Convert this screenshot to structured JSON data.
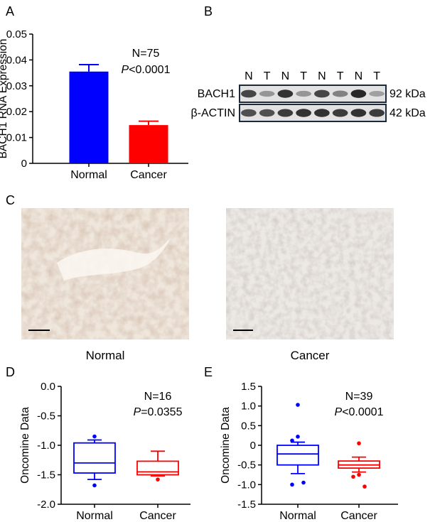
{
  "panels": {
    "a": "A",
    "b": "B",
    "c": "C",
    "d": "D",
    "e": "E"
  },
  "colors": {
    "normal": "#0000ff",
    "cancer": "#ff0000",
    "axis": "#000000"
  },
  "chart_data": [
    {
      "id": "A",
      "type": "bar",
      "categories": [
        "Normal",
        "Cancer"
      ],
      "values": [
        0.0355,
        0.0148
      ],
      "errors": [
        0.0027,
        0.0015
      ],
      "ylabel": "BACH1 RNA Expression",
      "ylim": [
        0,
        0.05
      ],
      "yticks": [
        "0",
        "0.01",
        "0.02",
        "0.03",
        "0.04",
        "0.05"
      ],
      "annotation": {
        "n": "N=75",
        "p_symbol": "P",
        "p_rest": "<0.0001"
      }
    },
    {
      "id": "D",
      "type": "box",
      "categories": [
        "Normal",
        "Cancer"
      ],
      "boxes": [
        {
          "whisker_low": -1.58,
          "q1": -1.47,
          "median": -1.3,
          "q3": -0.96,
          "whisker_high": -0.91,
          "outliers": [
            -0.85,
            -1.68
          ]
        },
        {
          "whisker_low": -1.52,
          "q1": -1.5,
          "median": -1.45,
          "q3": -1.27,
          "whisker_high": -1.1,
          "outliers": [
            -1.58
          ]
        }
      ],
      "ylabel": "Oncomine Data",
      "ylim": [
        -2.0,
        0.0
      ],
      "yticks": [
        "0.0",
        "-0.5",
        "-1.0",
        "-1.5",
        "-2.0"
      ],
      "annotation": {
        "n": "N=16",
        "p_symbol": "P",
        "p_rest": "=0.0355"
      }
    },
    {
      "id": "E",
      "type": "box",
      "categories": [
        "Normal",
        "Cancer"
      ],
      "boxes": [
        {
          "whisker_low": -0.72,
          "q1": -0.5,
          "median": -0.22,
          "q3": 0.0,
          "whisker_high": 0.08,
          "outliers": [
            1.03,
            0.22,
            0.12,
            -0.95,
            -1.0
          ]
        },
        {
          "whisker_low": -0.68,
          "q1": -0.58,
          "median": -0.5,
          "q3": -0.4,
          "whisker_high": -0.3,
          "outliers": [
            0.05,
            -0.75,
            -0.8,
            -1.05
          ]
        }
      ],
      "ylabel": "Oncomine Data",
      "ylim": [
        -1.5,
        1.5
      ],
      "yticks": [
        "1.5",
        "1.0",
        "0.5",
        "0",
        "-0.5",
        "-1.0",
        "-1.5"
      ],
      "annotation": {
        "n": "N=39",
        "p_symbol": "P",
        "p_rest": "<0.0001"
      }
    }
  ],
  "western": {
    "lanes": [
      "N",
      "T",
      "N",
      "T",
      "N",
      "T",
      "N",
      "T"
    ],
    "rows": [
      {
        "label": "BACH1",
        "size": "92 kDa",
        "intensities": [
          0.75,
          0.35,
          0.85,
          0.35,
          0.75,
          0.45,
          0.9,
          0.3
        ]
      },
      {
        "label": "β-ACTIN",
        "size": "42 kDa",
        "intensities": [
          0.7,
          0.7,
          0.8,
          0.85,
          0.85,
          0.8,
          0.85,
          0.8
        ]
      }
    ]
  },
  "ihc": {
    "left_caption": "Normal",
    "right_caption": "Cancer"
  }
}
